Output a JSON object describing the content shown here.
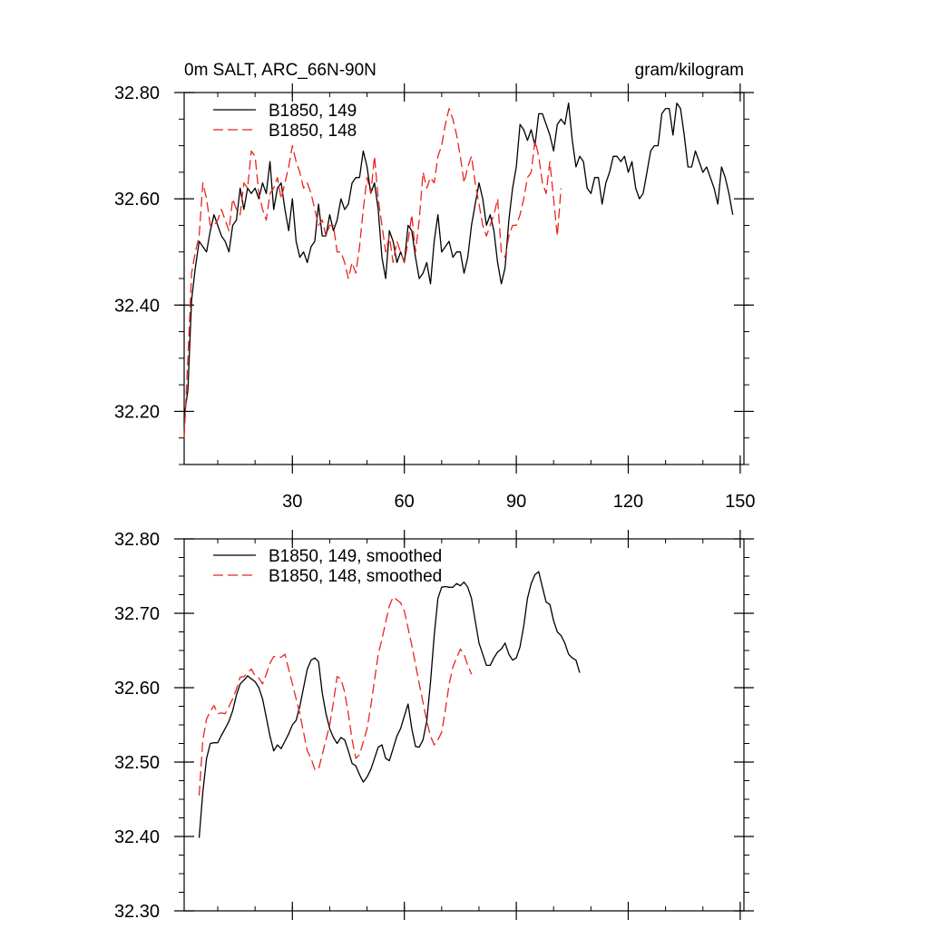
{
  "title_left": "0m SALT, ARC_66N-90N",
  "title_right": "gram/kilogram",
  "colors": {
    "run149": "#000000",
    "run148": "#e8251f"
  },
  "chart_data": [
    {
      "type": "line",
      "xlim": [
        1,
        151
      ],
      "ylim": [
        32.1,
        32.8
      ],
      "yticks": [
        32.2,
        32.4,
        32.6,
        32.8
      ],
      "ytick_labels": [
        "32.20",
        "32.40",
        "32.60",
        "32.80"
      ],
      "yminor_step": 0.05,
      "xticks": [
        30,
        60,
        90,
        120,
        150
      ],
      "xtick_labels": [
        "30",
        "60",
        "90",
        "120",
        "150"
      ],
      "xminor_step": 10,
      "legend_position": "top-left",
      "series": [
        {
          "name": "B1850, 149",
          "style": "solid",
          "color": "#000000",
          "x_start": 1,
          "values": [
            32.19,
            32.24,
            32.41,
            32.47,
            32.52,
            32.51,
            32.5,
            32.54,
            32.57,
            32.55,
            32.53,
            32.52,
            32.5,
            32.55,
            32.56,
            32.62,
            32.58,
            32.62,
            32.61,
            32.62,
            32.6,
            32.63,
            32.61,
            32.67,
            32.58,
            32.62,
            32.63,
            32.58,
            32.54,
            32.6,
            32.52,
            32.49,
            32.5,
            32.48,
            32.51,
            32.52,
            32.59,
            32.53,
            32.53,
            32.57,
            32.54,
            32.56,
            32.6,
            32.58,
            32.59,
            32.63,
            32.64,
            32.64,
            32.69,
            32.66,
            32.61,
            32.63,
            32.58,
            32.49,
            32.45,
            32.54,
            32.52,
            32.48,
            32.5,
            32.48,
            32.55,
            32.54,
            32.49,
            32.45,
            32.46,
            32.48,
            32.44,
            32.52,
            32.57,
            32.5,
            32.51,
            32.52,
            32.49,
            32.5,
            32.5,
            32.46,
            32.49,
            32.55,
            32.59,
            32.63,
            32.6,
            32.55,
            32.57,
            32.54,
            32.48,
            32.44,
            32.47,
            32.56,
            32.62,
            32.66,
            32.74,
            32.73,
            32.71,
            32.73,
            32.7,
            32.76,
            32.76,
            32.74,
            32.72,
            32.69,
            32.74,
            32.75,
            32.74,
            32.78,
            32.71,
            32.66,
            32.68,
            32.67,
            32.62,
            32.61,
            32.64,
            32.64,
            32.59,
            32.63,
            32.65,
            32.68,
            32.68,
            32.67,
            32.68,
            32.65,
            32.67,
            32.62,
            32.6,
            32.61,
            32.65,
            32.69,
            32.7,
            32.7,
            32.76,
            32.77,
            32.77,
            32.72,
            32.78,
            32.77,
            32.72,
            32.66,
            32.66,
            32.69,
            32.67,
            32.65,
            32.66,
            32.64,
            32.62,
            32.59,
            32.66,
            32.64,
            32.61,
            32.57
          ]
        },
        {
          "name": "B1850, 148",
          "style": "dashed",
          "color": "#e8251f",
          "x_start": 1,
          "values": [
            32.15,
            32.3,
            32.46,
            32.5,
            32.53,
            32.63,
            32.6,
            32.55,
            32.55,
            32.56,
            32.58,
            32.56,
            32.54,
            32.6,
            32.58,
            32.57,
            32.63,
            32.62,
            32.69,
            32.68,
            32.61,
            32.58,
            32.56,
            32.61,
            32.62,
            32.64,
            32.6,
            32.63,
            32.66,
            32.7,
            32.67,
            32.65,
            32.62,
            32.63,
            32.61,
            32.58,
            32.55,
            32.56,
            32.53,
            32.55,
            32.55,
            32.5,
            32.5,
            32.48,
            32.45,
            32.48,
            32.46,
            32.51,
            32.58,
            32.64,
            32.61,
            32.68,
            32.6,
            32.55,
            32.5,
            32.53,
            32.48,
            32.52,
            32.5,
            32.48,
            32.52,
            32.57,
            32.5,
            32.56,
            32.65,
            32.62,
            32.64,
            32.63,
            32.68,
            32.7,
            32.74,
            32.77,
            32.75,
            32.72,
            32.68,
            32.63,
            32.66,
            32.68,
            32.63,
            32.59,
            32.55,
            32.53,
            32.55,
            32.57,
            32.6,
            32.5,
            32.49,
            32.53,
            32.55,
            32.55,
            32.57,
            32.6,
            32.64,
            32.65,
            32.71,
            32.68,
            32.63,
            32.61,
            32.67,
            32.6,
            32.53,
            32.62
          ]
        }
      ]
    },
    {
      "type": "line",
      "xlim": [
        1,
        151
      ],
      "ylim": [
        32.3,
        32.8
      ],
      "yticks": [
        32.3,
        32.4,
        32.5,
        32.6,
        32.7,
        32.8
      ],
      "ytick_labels": [
        "32.30",
        "32.40",
        "32.50",
        "32.60",
        "32.70",
        "32.80"
      ],
      "yminor_step": 0.025,
      "xticks": [
        30,
        60,
        90,
        120,
        150
      ],
      "xminor_step": 10,
      "legend_position": "top-left",
      "series": [
        {
          "name": "B1850, 149, smoothed",
          "style": "solid",
          "color": "#000000",
          "x_start": 5,
          "values": [
            32.398,
            32.46,
            32.505,
            32.525,
            32.526,
            32.526,
            32.536,
            32.545,
            32.555,
            32.569,
            32.59,
            32.605,
            32.61,
            32.616,
            32.612,
            32.608,
            32.6,
            32.585,
            32.56,
            32.535,
            32.515,
            32.523,
            32.518,
            32.528,
            32.538,
            32.55,
            32.556,
            32.575,
            32.6,
            32.625,
            32.637,
            32.64,
            32.635,
            32.593,
            32.565,
            32.545,
            32.533,
            32.525,
            32.533,
            32.53,
            32.515,
            32.498,
            32.495,
            32.483,
            32.473,
            32.48,
            32.49,
            32.505,
            32.52,
            32.523,
            32.505,
            32.502,
            32.518,
            32.535,
            32.545,
            32.562,
            32.578,
            32.545,
            32.521,
            32.52,
            32.53,
            32.555,
            32.607,
            32.67,
            32.72,
            32.735,
            32.736,
            32.735,
            32.735,
            32.74,
            32.737,
            32.742,
            32.735,
            32.72,
            32.69,
            32.66,
            32.645,
            32.63,
            32.63,
            32.64,
            32.648,
            32.652,
            32.66,
            32.645,
            32.637,
            32.64,
            32.655,
            32.683,
            32.72,
            32.74,
            32.752,
            32.756,
            32.735,
            32.715,
            32.712,
            32.69,
            32.675,
            32.67,
            32.66,
            32.645,
            32.64,
            32.637,
            32.62
          ]
        },
        {
          "name": "B1850, 148, smoothed",
          "style": "dashed",
          "color": "#e8251f",
          "x_start": 5,
          "values": [
            32.455,
            32.53,
            32.558,
            32.568,
            32.576,
            32.565,
            32.566,
            32.565,
            32.575,
            32.585,
            32.598,
            32.614,
            32.615,
            32.62,
            32.625,
            32.616,
            32.613,
            32.605,
            32.618,
            32.633,
            32.642,
            32.641,
            32.641,
            32.645,
            32.625,
            32.605,
            32.585,
            32.565,
            32.54,
            32.515,
            32.505,
            32.49,
            32.49,
            32.51,
            32.53,
            32.55,
            32.58,
            32.615,
            32.612,
            32.594,
            32.565,
            32.53,
            32.505,
            32.51,
            32.527,
            32.545,
            32.575,
            32.61,
            32.645,
            32.665,
            32.688,
            32.71,
            32.722,
            32.718,
            32.714,
            32.703,
            32.68,
            32.657,
            32.632,
            32.605,
            32.58,
            32.555,
            32.535,
            32.523,
            32.53,
            32.54,
            32.57,
            32.604,
            32.628,
            32.64,
            32.652,
            32.645,
            32.63,
            32.618
          ]
        }
      ]
    }
  ]
}
